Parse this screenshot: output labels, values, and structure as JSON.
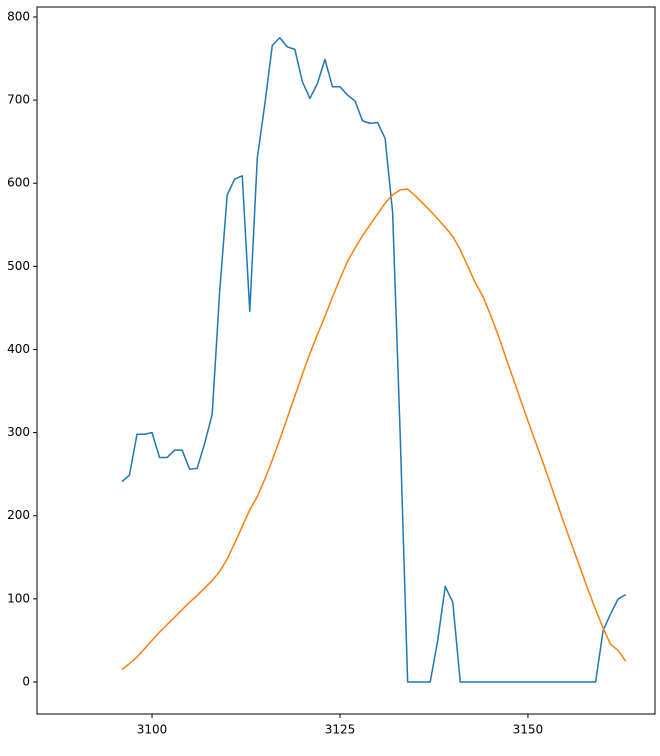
{
  "chart_data": {
    "type": "line",
    "x": [
      3096,
      3097,
      3098,
      3099,
      3100,
      3101,
      3102,
      3103,
      3104,
      3105,
      3106,
      3107,
      3108,
      3109,
      3110,
      3111,
      3112,
      3113,
      3114,
      3115,
      3116,
      3117,
      3118,
      3119,
      3120,
      3121,
      3122,
      3123,
      3124,
      3125,
      3126,
      3127,
      3128,
      3129,
      3130,
      3131,
      3132,
      3133,
      3134,
      3135,
      3136,
      3137,
      3138,
      3139,
      3140,
      3141,
      3142,
      3143,
      3144,
      3145,
      3146,
      3147,
      3148,
      3149,
      3150,
      3151,
      3152,
      3153,
      3154,
      3155,
      3156,
      3157,
      3158,
      3159,
      3160,
      3161,
      3162,
      3163
    ],
    "series": [
      {
        "color": "#1f77b4",
        "values": [
          241,
          249,
          298,
          298,
          300,
          270,
          270,
          279,
          279,
          256,
          257,
          287,
          322,
          470,
          586,
          605,
          609,
          446,
          630,
          695,
          766,
          775,
          764,
          761,
          722,
          702,
          720,
          749,
          716,
          716,
          706,
          699,
          675,
          672,
          673,
          654,
          565,
          300,
          0,
          0,
          0,
          0,
          50,
          115,
          96,
          0,
          0,
          0,
          0,
          0,
          0,
          0,
          0,
          0,
          0,
          0,
          0,
          0,
          0,
          0,
          0,
          0,
          0,
          0,
          62,
          82,
          100,
          105
        ]
      },
      {
        "color": "#ff7f0e",
        "values": [
          15,
          22,
          30,
          40,
          50,
          60,
          69,
          78,
          87,
          96,
          104,
          113,
          122,
          133,
          148,
          167,
          187,
          207,
          223,
          244,
          267,
          292,
          318,
          344,
          370,
          395,
          418,
          440,
          463,
          485,
          506,
          522,
          537,
          550,
          563,
          576,
          586,
          592,
          593,
          585,
          576,
          567,
          557,
          547,
          536,
          520,
          500,
          480,
          464,
          442,
          418,
          392,
          366,
          340,
          314,
          289,
          264,
          238,
          212,
          186,
          161,
          136,
          111,
          87,
          65,
          45,
          38,
          25
        ]
      }
    ],
    "xlim": [
      3084.7,
      3166.9
    ],
    "ylim": [
      -38.5,
      812
    ],
    "xticks": [
      3100,
      3125,
      3150
    ],
    "yticks": [
      0,
      100,
      200,
      300,
      400,
      500,
      600,
      700,
      800
    ]
  }
}
